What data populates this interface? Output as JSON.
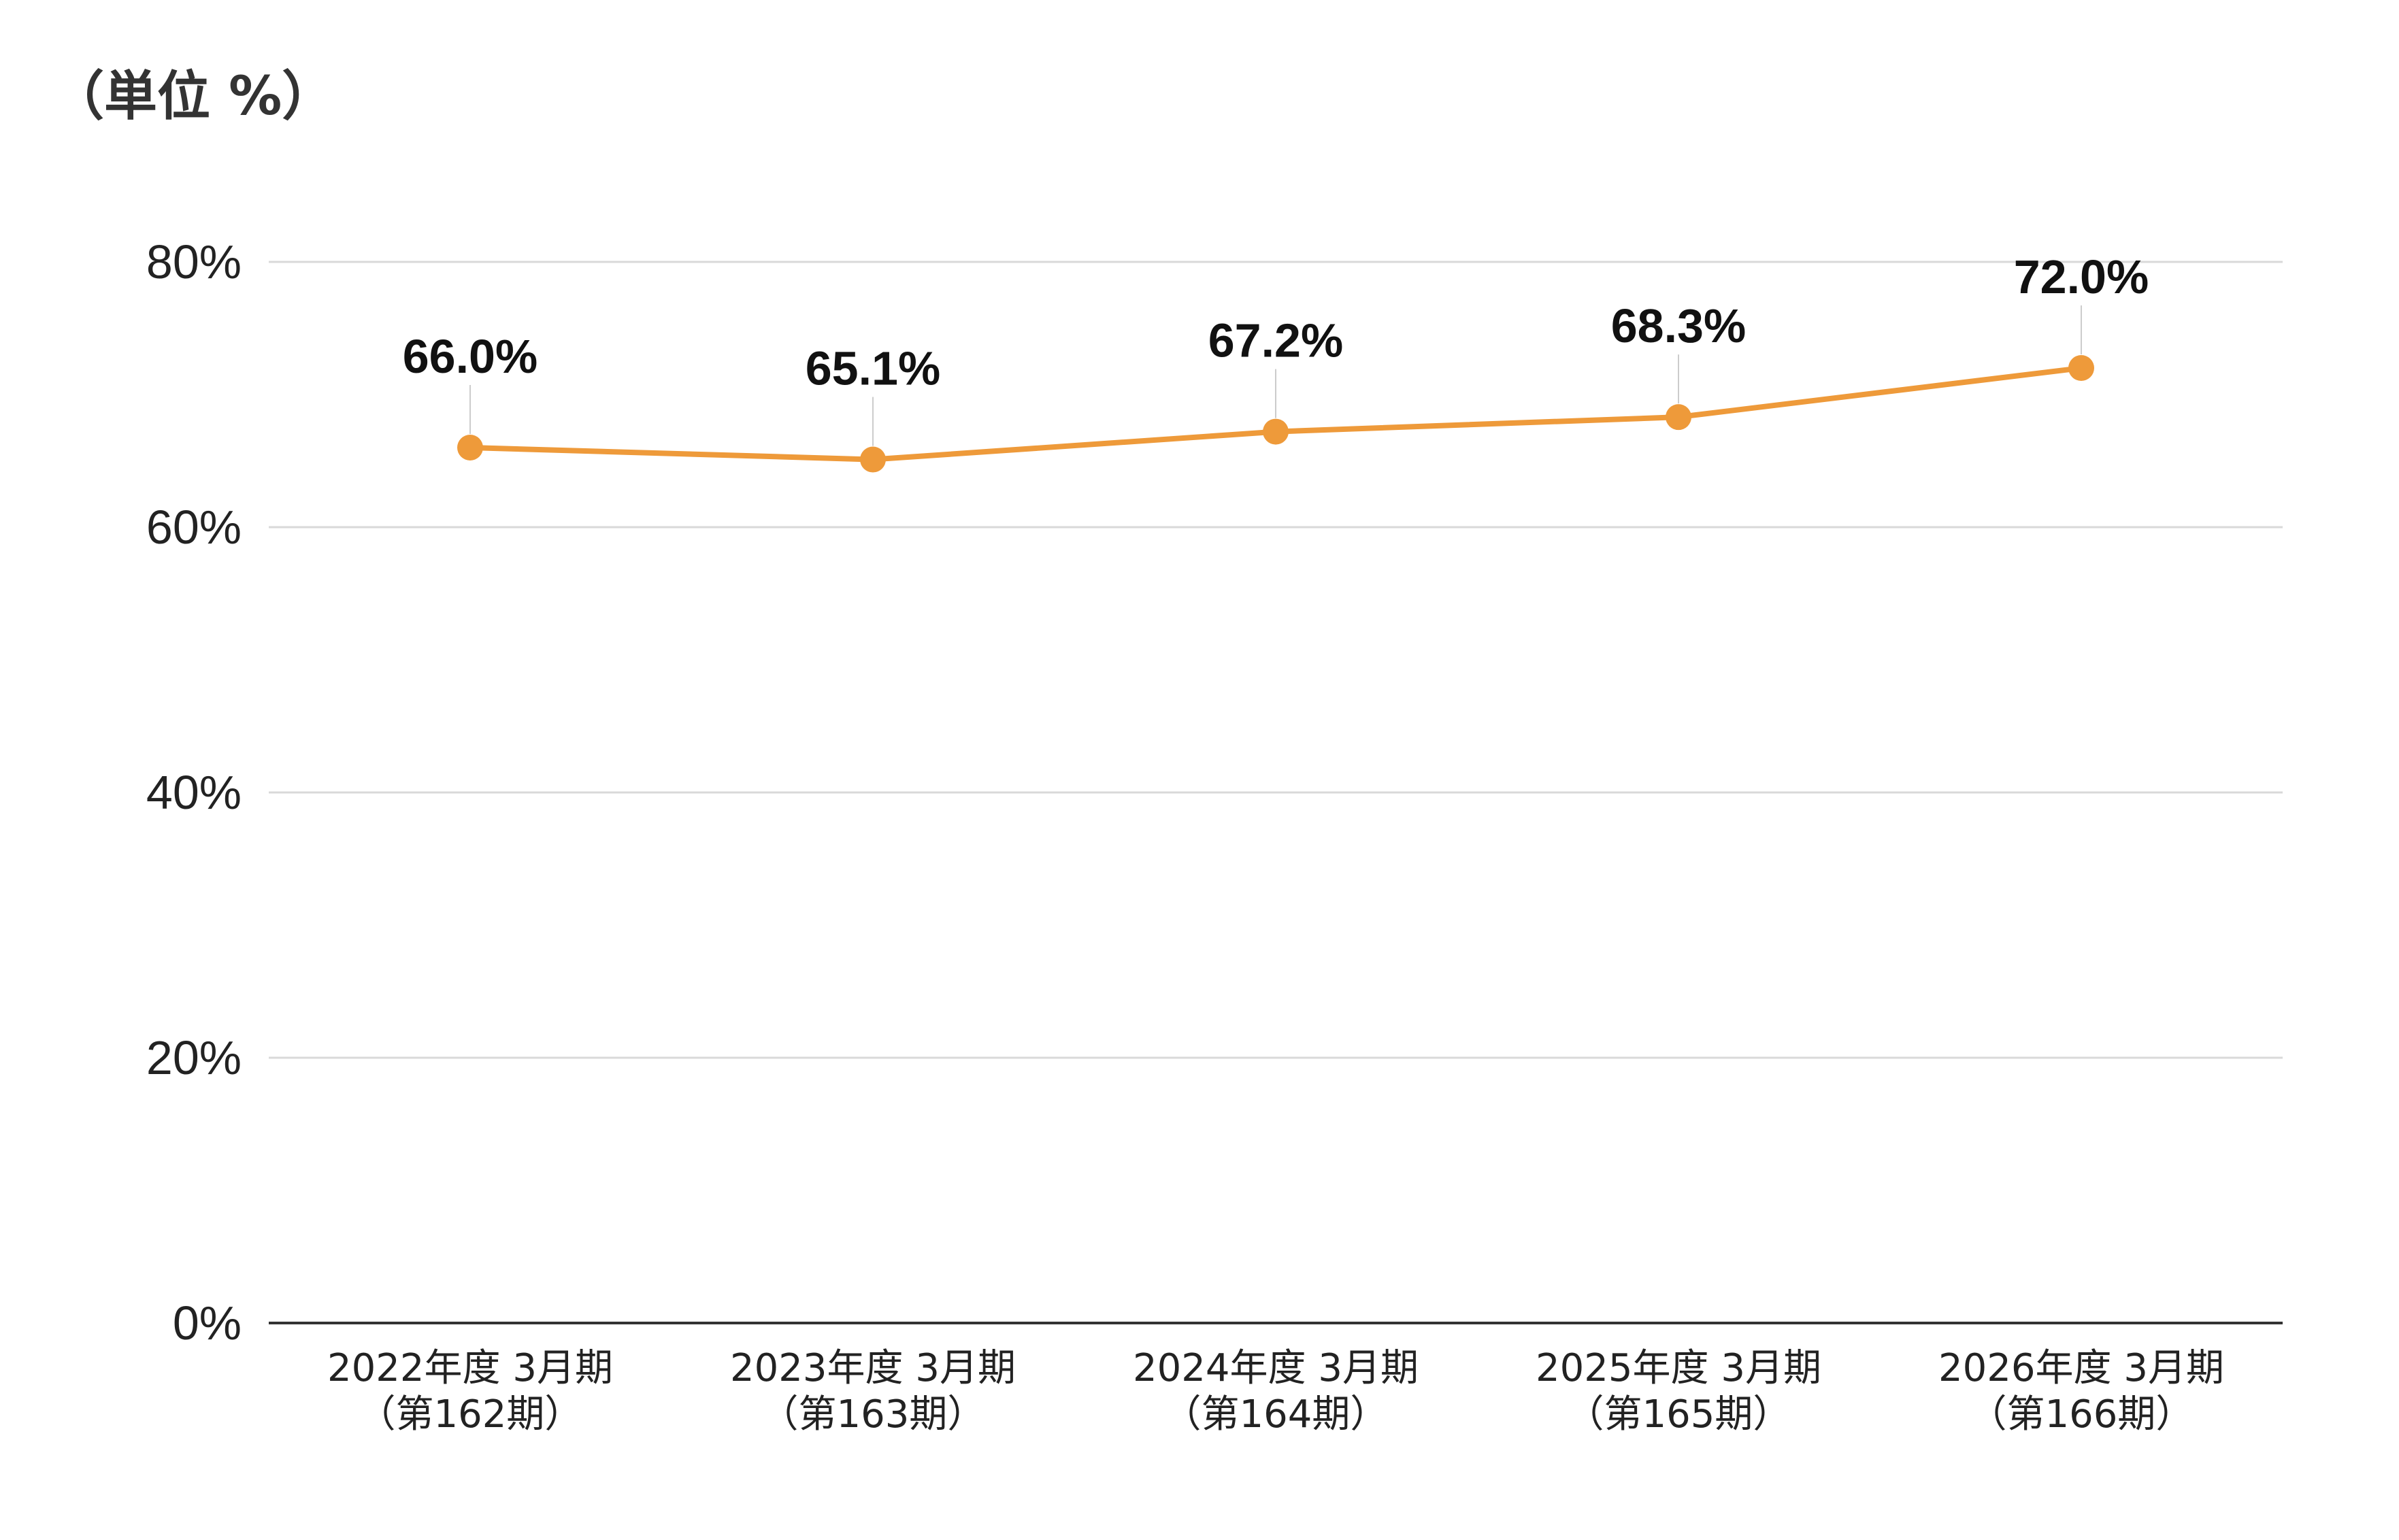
{
  "chart_data": {
    "type": "line",
    "unit_label": "（単位 %）",
    "categories": [
      [
        "2022年度 3月期",
        "（第162期）"
      ],
      [
        "2023年度 3月期",
        "（第163期）"
      ],
      [
        "2024年度 3月期",
        "（第164期）"
      ],
      [
        "2025年度 3月期",
        "（第165期）"
      ],
      [
        "2026年度 3月期",
        "（第166期）"
      ]
    ],
    "series": [
      {
        "values": [
          66.0,
          65.1,
          67.2,
          68.3,
          72.0
        ],
        "data_labels": [
          "66.0%",
          "65.1%",
          "67.2%",
          "68.3%",
          "72.0%"
        ],
        "color": "#EE9A3A"
      }
    ],
    "ylim": [
      0,
      80
    ],
    "y_ticks": [
      0,
      20,
      40,
      60,
      80
    ],
    "y_tick_labels": [
      "0%",
      "20%",
      "40%",
      "60%",
      "80%"
    ],
    "grid": true,
    "legend": "none"
  }
}
